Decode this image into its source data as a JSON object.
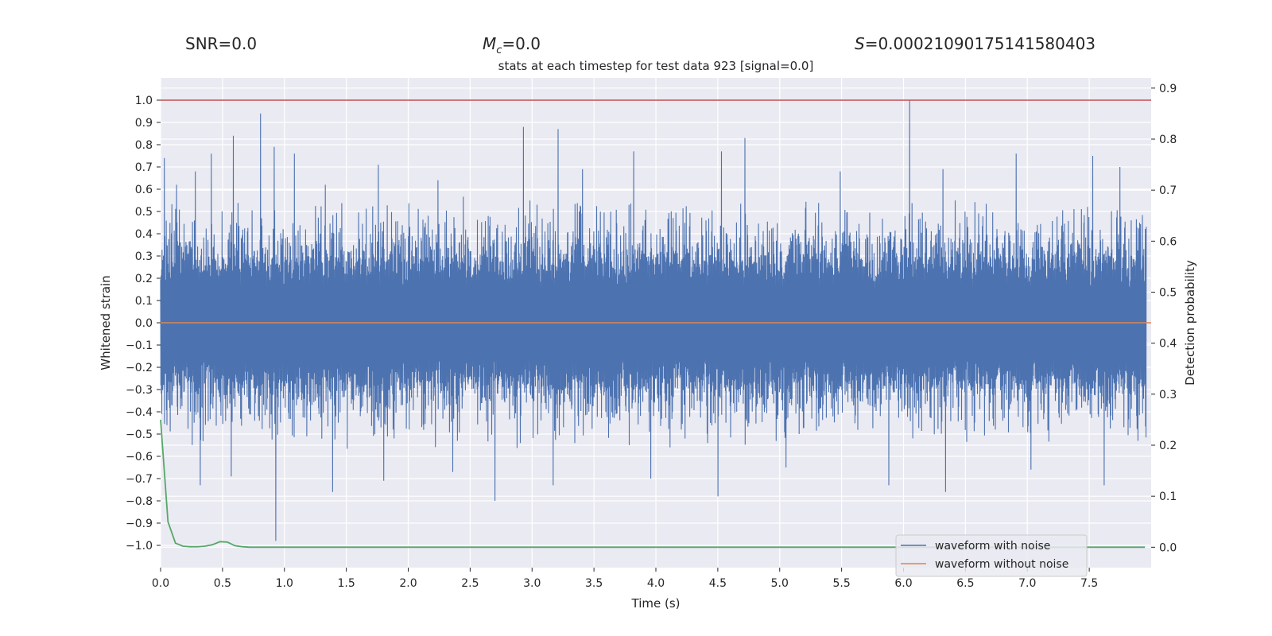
{
  "header": {
    "snr": "SNR=0.0",
    "mc_symbol": "M",
    "mc_sub": "c",
    "mc_value": "=0.0",
    "s_symbol": "S",
    "s_value": "=0.0002109017514158040​3"
  },
  "chart_data": {
    "type": "line",
    "title": "stats at each timestep for test data 923 [signal=0.0]",
    "xlabel": "Time (s)",
    "ylabel": "Whitened strain",
    "y2label": "Detection probability",
    "xlim": [
      0.0,
      8.0
    ],
    "ylim": [
      -1.1,
      1.1
    ],
    "y2lim": [
      -0.04,
      0.92
    ],
    "x_ticks": [
      0.0,
      0.5,
      1.0,
      1.5,
      2.0,
      2.5,
      3.0,
      3.5,
      4.0,
      4.5,
      5.0,
      5.5,
      6.0,
      6.5,
      7.0,
      7.5
    ],
    "x_tick_labels": [
      "0.0",
      "0.5",
      "1.0",
      "1.5",
      "2.0",
      "2.5",
      "3.0",
      "3.5",
      "4.0",
      "4.5",
      "5.0",
      "5.5",
      "6.0",
      "6.5",
      "7.0",
      "7.5"
    ],
    "y_ticks": [
      1.0,
      0.9,
      0.8,
      0.7,
      0.6,
      0.5,
      0.4,
      0.3,
      0.2,
      0.1,
      0.0,
      -0.1,
      -0.2,
      -0.3,
      -0.4,
      -0.5,
      -0.6,
      -0.7,
      -0.8,
      -0.9,
      -1.0
    ],
    "y_tick_labels": [
      "1.0",
      "0.9",
      "0.8",
      "0.7",
      "0.6",
      "0.5",
      "0.4",
      "0.3",
      "0.2",
      "0.1",
      "0.0",
      "−0.1",
      "−0.2",
      "−0.3",
      "−0.4",
      "−0.5",
      "−0.6",
      "−0.7",
      "−0.8",
      "−0.9",
      "−1.0"
    ],
    "y2_ticks": [
      0.9,
      0.8,
      0.7,
      0.6,
      0.5,
      0.4,
      0.3,
      0.2,
      0.1,
      0.0
    ],
    "y2_tick_labels": [
      "0.9",
      "0.8",
      "0.7",
      "0.6",
      "0.5",
      "0.4",
      "0.3",
      "0.2",
      "0.1",
      "0.0"
    ],
    "grid": true,
    "legend_position": "bottom-right",
    "series": [
      {
        "name": "waveform with noise",
        "color": "#4c72b0",
        "kind": "noise",
        "envelope_peaks_x": [
          0.03,
          0.13,
          0.28,
          0.41,
          0.59,
          0.81,
          0.92,
          1.08,
          1.33,
          1.76,
          2.24,
          2.93,
          3.21,
          3.41,
          3.82,
          4.53,
          4.72,
          5.49,
          6.05,
          6.32,
          6.91,
          7.53,
          7.75
        ],
        "envelope_peaks_y": [
          0.74,
          0.62,
          0.68,
          0.76,
          0.84,
          0.94,
          0.79,
          0.76,
          0.62,
          0.71,
          0.64,
          0.88,
          0.87,
          0.69,
          0.77,
          0.77,
          0.83,
          0.68,
          1.0,
          0.69,
          0.76,
          0.75,
          0.7
        ],
        "envelope_troughs_x": [
          0.05,
          0.32,
          0.57,
          0.93,
          1.39,
          1.8,
          2.36,
          2.7,
          3.17,
          3.96,
          4.5,
          5.05,
          5.88,
          6.34,
          7.03,
          7.62
        ],
        "envelope_troughs_y": [
          -0.46,
          -0.73,
          -0.69,
          -0.98,
          -0.76,
          -0.71,
          -0.67,
          -0.8,
          -0.73,
          -0.7,
          -0.78,
          -0.65,
          -0.73,
          -0.76,
          -0.66,
          -0.73
        ]
      },
      {
        "name": "waveform without noise",
        "color": "#dd8452",
        "kind": "line",
        "x": [
          0.0,
          8.0
        ],
        "y": [
          0.0,
          0.0
        ]
      }
    ],
    "threshold_line": {
      "y": 1.0,
      "color": "#c44e52"
    },
    "detection_probability": {
      "color": "#55a868",
      "x": [
        0.0,
        0.06,
        0.12,
        0.18,
        0.24,
        0.3,
        0.36,
        0.42,
        0.48,
        0.54,
        0.6,
        0.66,
        0.72,
        0.8,
        1.0,
        7.95
      ],
      "y": [
        0.25,
        0.05,
        0.008,
        0.002,
        0.001,
        0.001,
        0.002,
        0.005,
        0.011,
        0.01,
        0.003,
        0.001,
        0.0,
        0.0,
        0.0,
        0.0
      ]
    }
  }
}
